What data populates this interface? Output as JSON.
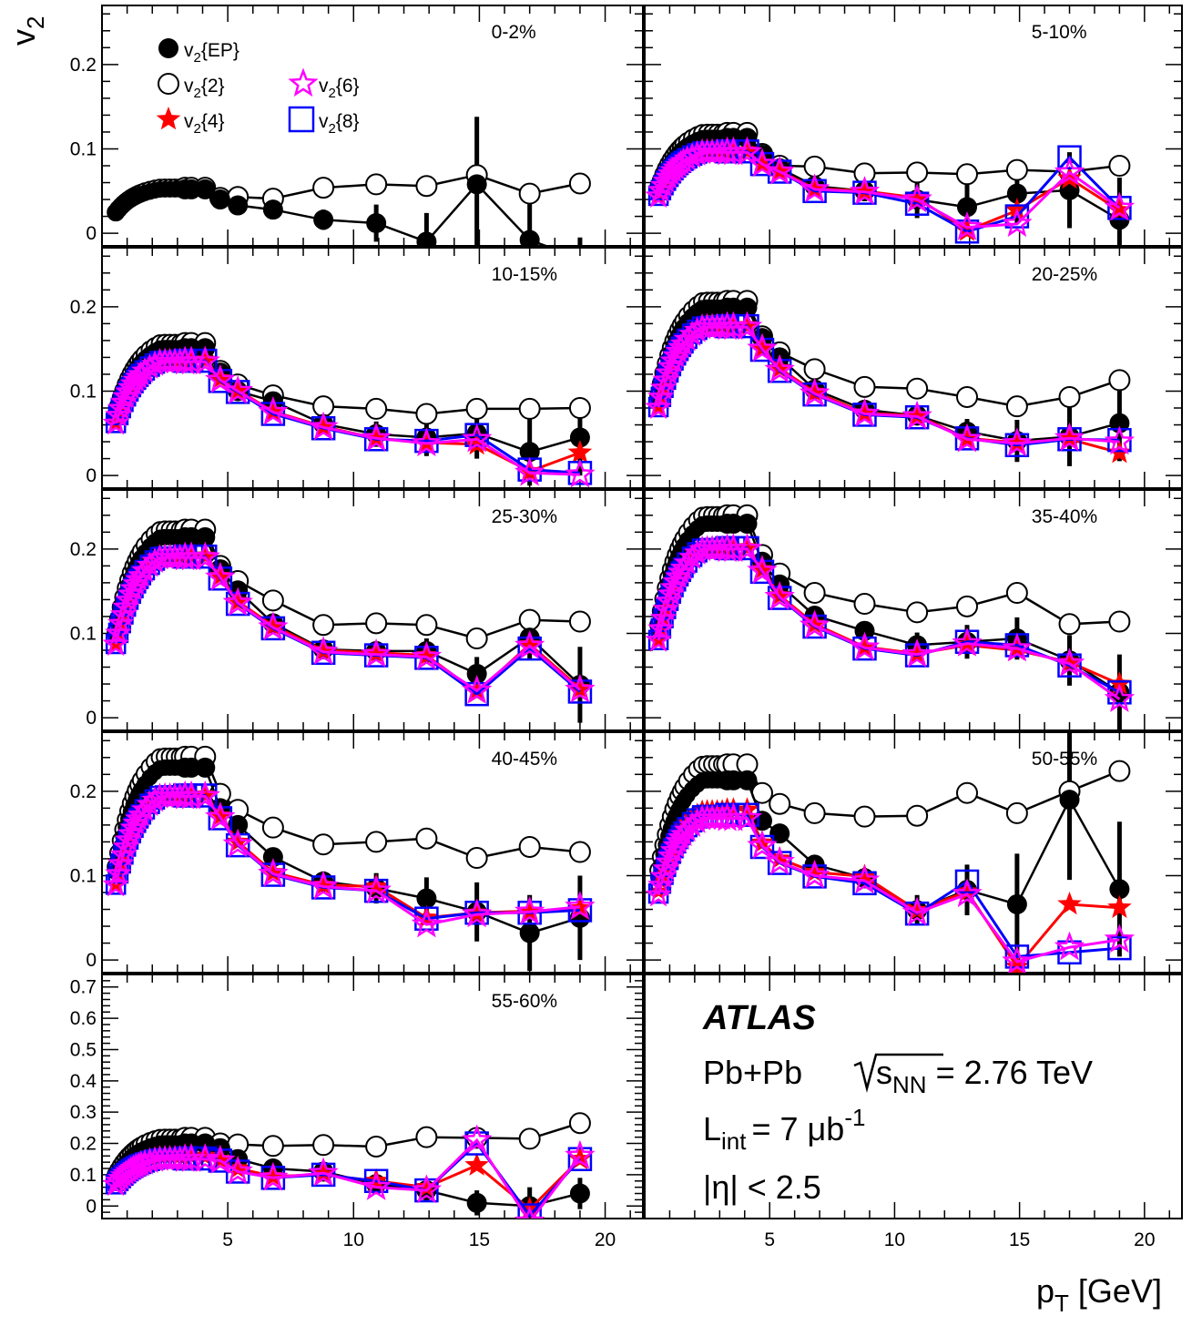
{
  "chart_data": {
    "type": "scatter",
    "experiment": "ATLAS",
    "system": "Pb+Pb",
    "energy_prefix": "s",
    "energy_sub": "NN",
    "energy_value": "= 2.76 TeV",
    "lumi_prefix": "L",
    "lumi_sub": "int",
    "lumi_value": "= 7 μb",
    "lumi_exp": "-1",
    "eta_cut": "|η| < 2.5",
    "xlabel": "p",
    "xlabel_sub": "T",
    "xlabel_unit": " [GeV]",
    "ylabel": "v",
    "ylabel_sub": "2",
    "xlim": [
      0,
      21.5
    ],
    "x_ticks": [
      "5",
      "10",
      "15",
      "20"
    ],
    "colors": {
      "EP": "#000000",
      "v2": "#000000",
      "v4": "#ff0000",
      "v6": "#ff00ff",
      "v8": "#0000ff"
    },
    "legend": [
      {
        "key": "EP",
        "pre": "v",
        "sub": "2",
        "post": "{EP}",
        "marker": "filled-circle"
      },
      {
        "key": "v2",
        "pre": "v",
        "sub": "2",
        "post": "{2}",
        "marker": "open-circle"
      },
      {
        "key": "v4",
        "pre": "v",
        "sub": "2",
        "post": "{4}",
        "marker": "filled-star"
      },
      {
        "key": "v6",
        "pre": "v",
        "sub": "2",
        "post": "{6}",
        "marker": "open-star"
      },
      {
        "key": "v8",
        "pre": "v",
        "sub": "2",
        "post": "{8}",
        "marker": "open-square"
      }
    ],
    "pt": [
      0.55,
      0.65,
      0.75,
      0.85,
      0.95,
      1.05,
      1.15,
      1.25,
      1.35,
      1.45,
      1.55,
      1.7,
      1.9,
      2.1,
      2.3,
      2.5,
      2.7,
      2.9,
      3.1,
      3.3,
      3.55,
      4.1,
      4.7,
      5.4,
      6.8,
      8.8,
      10.9,
      12.9,
      14.9,
      17.0,
      19.0
    ],
    "panels": [
      {
        "label": "0-2%",
        "ylim": [
          -0.015,
          0.27
        ],
        "y_ticks": [
          {
            "v": 0,
            "t": "0"
          },
          {
            "v": 0.1,
            "t": "0.1"
          },
          {
            "v": 0.2,
            "t": "0.2"
          }
        ],
        "peak": {
          "EP": 0.052,
          "v2": 0.054
        },
        "high": {
          "EP": [
            0.04,
            0.033,
            0.028,
            0.016,
            0.012,
            -0.01,
            0.058,
            -0.008,
            -0.03
          ],
          "v2": [
            0.042,
            0.043,
            0.041,
            0.054,
            0.058,
            0.056,
            0.069,
            0.047,
            0.059
          ]
        },
        "err": {
          "EP": [
            0.012,
            0.022,
            0.034,
            0.08,
            0.05,
            0.025
          ]
        }
      },
      {
        "label": "5-10%",
        "ylim": [
          -0.015,
          0.27
        ],
        "y_ticks": [
          {
            "v": 0,
            "t": ""
          },
          {
            "v": 0.1,
            "t": ""
          },
          {
            "v": 0.2,
            "t": ""
          }
        ],
        "peak": {
          "EP": 0.113,
          "v2": 0.119,
          "v4": 0.098,
          "v6": 0.096,
          "v8": 0.097
        },
        "high": {
          "EP": [
            0.093,
            0.077,
            0.056,
            0.05,
            0.04,
            0.031,
            0.047,
            0.051,
            0.016
          ],
          "v2": [
            0.094,
            0.08,
            0.079,
            0.071,
            0.072,
            0.07,
            0.075,
            0.073,
            0.08
          ],
          "v4": [
            0.082,
            0.074,
            0.053,
            0.05,
            0.042,
            0.003,
            0.027,
            0.065,
            0.027
          ],
          "v6": [
            0.082,
            0.073,
            0.052,
            0.049,
            0.04,
            0.007,
            0.011,
            0.072,
            0.03
          ],
          "v8": [
            0.082,
            0.073,
            0.05,
            0.048,
            0.035,
            0.002,
            0.02,
            0.09,
            0.03
          ]
        },
        "err": {
          "EP": [
            0.012,
            0.022,
            0.03,
            0.035,
            0.045,
            0.05
          ]
        }
      },
      {
        "label": "10-15%",
        "ylim": [
          -0.015,
          0.27
        ],
        "y_ticks": [
          {
            "v": 0,
            "t": "0"
          },
          {
            "v": 0.1,
            "t": "0.1"
          },
          {
            "v": 0.2,
            "t": "0.2"
          }
        ],
        "peak": {
          "EP": 0.151,
          "v2": 0.157,
          "v4": 0.137,
          "v6": 0.135,
          "v8": 0.136
        },
        "high": {
          "EP": [
            0.122,
            0.1,
            0.088,
            0.061,
            0.049,
            0.045,
            0.05,
            0.028,
            0.045
          ],
          "v2": [
            0.124,
            0.108,
            0.095,
            0.082,
            0.079,
            0.073,
            0.079,
            0.079,
            0.08
          ],
          "v4": [
            0.115,
            0.101,
            0.076,
            0.058,
            0.044,
            0.039,
            0.037,
            0.005,
            0.027
          ],
          "v6": [
            0.113,
            0.1,
            0.075,
            0.057,
            0.044,
            0.038,
            0.043,
            0.003,
            0.001
          ],
          "v8": [
            0.112,
            0.099,
            0.073,
            0.056,
            0.043,
            0.041,
            0.048,
            0.007,
            0.003
          ]
        },
        "err": {
          "EP": [
            0.01,
            0.015,
            0.022,
            0.03,
            0.04,
            0.045
          ]
        }
      },
      {
        "label": "20-25%",
        "ylim": [
          -0.015,
          0.27
        ],
        "y_ticks": [
          {
            "v": 0,
            "t": ""
          },
          {
            "v": 0.1,
            "t": ""
          },
          {
            "v": 0.2,
            "t": ""
          }
        ],
        "peak": {
          "EP": 0.199,
          "v2": 0.207,
          "v4": 0.178,
          "v6": 0.176,
          "v8": 0.177
        },
        "high": {
          "EP": [
            0.163,
            0.14,
            0.102,
            0.078,
            0.071,
            0.052,
            0.041,
            0.046,
            0.062
          ],
          "v2": [
            0.165,
            0.146,
            0.126,
            0.105,
            0.103,
            0.093,
            0.082,
            0.093,
            0.113
          ],
          "v4": [
            0.151,
            0.127,
            0.099,
            0.074,
            0.071,
            0.044,
            0.039,
            0.043,
            0.027
          ],
          "v6": [
            0.15,
            0.125,
            0.097,
            0.073,
            0.07,
            0.043,
            0.038,
            0.044,
            0.04
          ],
          "v8": [
            0.149,
            0.124,
            0.096,
            0.072,
            0.069,
            0.044,
            0.036,
            0.043,
            0.042
          ]
        },
        "err": {
          "EP": [
            0.008,
            0.01,
            0.015,
            0.025,
            0.035,
            0.045
          ]
        }
      },
      {
        "label": "25-30%",
        "ylim": [
          -0.015,
          0.27
        ],
        "y_ticks": [
          {
            "v": 0,
            "t": "0"
          },
          {
            "v": 0.1,
            "t": "0.1"
          },
          {
            "v": 0.2,
            "t": "0.2"
          }
        ],
        "peak": {
          "EP": 0.214,
          "v2": 0.223,
          "v4": 0.192,
          "v6": 0.19,
          "v8": 0.191
        },
        "high": {
          "EP": [
            0.176,
            0.151,
            0.112,
            0.081,
            0.079,
            0.079,
            0.052,
            0.095,
            0.039
          ],
          "v2": [
            0.18,
            0.162,
            0.139,
            0.11,
            0.112,
            0.11,
            0.094,
            0.116,
            0.114
          ],
          "v4": [
            0.168,
            0.138,
            0.109,
            0.08,
            0.077,
            0.074,
            0.03,
            0.087,
            0.035
          ],
          "v6": [
            0.166,
            0.136,
            0.107,
            0.078,
            0.075,
            0.072,
            0.032,
            0.085,
            0.033
          ],
          "v8": [
            0.165,
            0.135,
            0.106,
            0.077,
            0.074,
            0.071,
            0.028,
            0.082,
            0.031
          ]
        },
        "err": {
          "EP": [
            0.008,
            0.01,
            0.015,
            0.02,
            0.025,
            0.045
          ]
        }
      },
      {
        "label": "35-40%",
        "ylim": [
          -0.015,
          0.27
        ],
        "y_ticks": [
          {
            "v": 0,
            "t": ""
          },
          {
            "v": 0.1,
            "t": ""
          },
          {
            "v": 0.2,
            "t": ""
          }
        ],
        "peak": {
          "EP": 0.23,
          "v2": 0.24,
          "v4": 0.202,
          "v6": 0.2,
          "v8": 0.201
        },
        "high": {
          "EP": [
            0.185,
            0.158,
            0.121,
            0.103,
            0.086,
            0.09,
            0.094,
            0.068,
            0.03
          ],
          "v2": [
            0.193,
            0.171,
            0.148,
            0.135,
            0.125,
            0.132,
            0.148,
            0.111,
            0.114
          ],
          "v4": [
            0.176,
            0.145,
            0.111,
            0.084,
            0.076,
            0.086,
            0.08,
            0.066,
            0.04
          ],
          "v6": [
            0.174,
            0.143,
            0.109,
            0.083,
            0.075,
            0.088,
            0.082,
            0.064,
            0.022
          ],
          "v8": [
            0.173,
            0.142,
            0.108,
            0.082,
            0.074,
            0.09,
            0.086,
            0.062,
            0.03
          ]
        },
        "err": {
          "EP": [
            0.01,
            0.015,
            0.02,
            0.025,
            0.03,
            0.045
          ]
        }
      },
      {
        "label": "40-45%",
        "ylim": [
          -0.015,
          0.27
        ],
        "y_ticks": [
          {
            "v": 0,
            "t": "0"
          },
          {
            "v": 0.1,
            "t": "0.1"
          },
          {
            "v": 0.2,
            "t": "0.2"
          }
        ],
        "peak": {
          "EP": 0.228,
          "v2": 0.241,
          "v4": 0.196,
          "v6": 0.194,
          "v8": 0.195
        },
        "high": {
          "EP": [
            0.18,
            0.16,
            0.122,
            0.093,
            0.085,
            0.073,
            0.057,
            0.032,
            0.05
          ],
          "v2": [
            0.197,
            0.178,
            0.157,
            0.137,
            0.14,
            0.144,
            0.121,
            0.134,
            0.128
          ],
          "v4": [
            0.171,
            0.14,
            0.104,
            0.089,
            0.087,
            0.05,
            0.056,
            0.058,
            0.061
          ],
          "v6": [
            0.169,
            0.137,
            0.102,
            0.087,
            0.082,
            0.042,
            0.054,
            0.057,
            0.063
          ],
          "v8": [
            0.168,
            0.136,
            0.101,
            0.086,
            0.082,
            0.049,
            0.056,
            0.056,
            0.059
          ]
        },
        "err": {
          "EP": [
            0.012,
            0.018,
            0.025,
            0.035,
            0.045,
            0.05
          ]
        }
      },
      {
        "label": "50-55%",
        "ylim": [
          -0.015,
          0.27
        ],
        "y_ticks": [
          {
            "v": 0,
            "t": ""
          },
          {
            "v": 0.1,
            "t": ""
          },
          {
            "v": 0.2,
            "t": ""
          }
        ],
        "peak": {
          "EP": 0.213,
          "v2": 0.232,
          "v4": 0.178,
          "v6": 0.168,
          "v8": 0.172
        },
        "high": {
          "EP": [
            0.165,
            0.15,
            0.113,
            0.097,
            0.059,
            0.083,
            0.066,
            0.19,
            0.084
          ],
          "v2": [
            0.198,
            0.185,
            0.174,
            0.17,
            0.171,
            0.198,
            0.174,
            0.2,
            0.224
          ],
          "v4": [
            0.139,
            0.12,
            0.104,
            0.099,
            0.059,
            0.081,
            -0.008,
            0.066,
            0.062
          ],
          "v6": [
            0.135,
            0.116,
            0.1,
            0.094,
            0.056,
            0.078,
            -0.002,
            0.015,
            0.024
          ],
          "v8": [
            0.134,
            0.115,
            0.099,
            0.091,
            0.055,
            0.093,
            0.004,
            0.009,
            0.014
          ]
        },
        "err": {
          "EP": [
            0.012,
            0.018,
            0.03,
            0.06,
            0.095,
            0.08
          ]
        }
      },
      {
        "label": "55-60%",
        "ylim": [
          -0.04,
          0.74
        ],
        "y_ticks": [
          {
            "v": 0,
            "t": "0"
          },
          {
            "v": 0.1,
            "t": "0.1"
          },
          {
            "v": 0.2,
            "t": "0.2"
          },
          {
            "v": 0.3,
            "t": "0.3"
          },
          {
            "v": 0.4,
            "t": "0.4"
          },
          {
            "v": 0.5,
            "t": "0.5"
          },
          {
            "v": 0.6,
            "t": "0.6"
          },
          {
            "v": 0.7,
            "t": "0.7"
          }
        ],
        "peak": {
          "EP": 0.2,
          "v2": 0.218,
          "v4": 0.16,
          "v6": 0.15,
          "v8": 0.152
        },
        "high": {
          "EP": [
            0.185,
            0.15,
            0.12,
            0.11,
            0.07,
            0.05,
            0.01,
            0.0,
            0.04
          ],
          "v2": [
            0.2,
            0.197,
            0.192,
            0.195,
            0.19,
            0.22,
            0.218,
            0.215,
            0.265
          ],
          "v4": [
            0.15,
            0.12,
            0.095,
            0.1,
            0.08,
            0.06,
            0.13,
            -0.01,
            0.15
          ],
          "v6": [
            0.145,
            0.11,
            0.09,
            0.105,
            0.06,
            0.05,
            0.21,
            -0.05,
            0.16
          ],
          "v8": [
            0.145,
            0.11,
            0.09,
            0.1,
            0.08,
            0.05,
            0.2,
            -0.03,
            0.15
          ]
        },
        "err": {
          "EP": [
            0.015,
            0.02,
            0.03,
            0.04,
            0.06,
            0.05
          ]
        }
      }
    ]
  }
}
